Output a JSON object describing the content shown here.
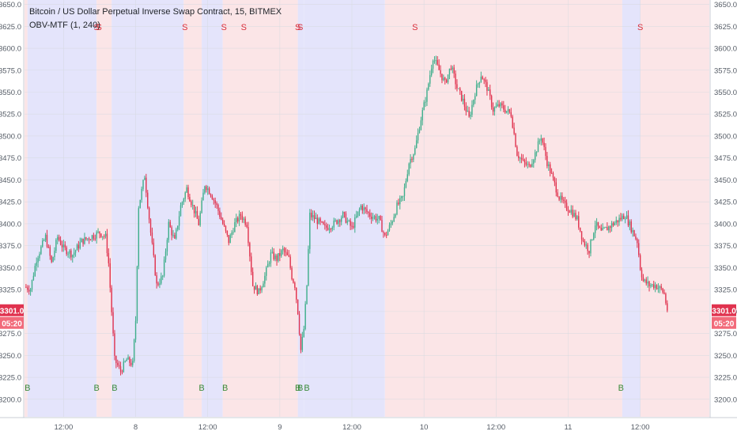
{
  "chart_data": {
    "type": "candlestick",
    "title": "Bitcoin / US Dollar Perpetual Inverse Swap Contract, 15, BITMEX",
    "indicator": "OBV-MTF (1, 240)",
    "y_range": [
      3180,
      3655
    ],
    "y_ticks": [
      3200,
      3225,
      3250,
      3275,
      3300,
      3325,
      3350,
      3375,
      3400,
      3425,
      3450,
      3475,
      3500,
      3525,
      3550,
      3575,
      3600,
      3625,
      3650
    ],
    "y_tick_labels": [
      "3200.0",
      "3225.0",
      "3250.0",
      "3275.0",
      "3300.0",
      "3325.0",
      "3350.0",
      "3375.0",
      "3400.0",
      "3425.0",
      "3450.0",
      "3475.0",
      "3500.0",
      "3525.0",
      "3550.0",
      "3575.0",
      "3600.0",
      "3625.0",
      "3650.0"
    ],
    "x_tick_labels": [
      "12:00",
      "8",
      "12:00",
      "9",
      "12:00",
      "10",
      "12:00",
      "11",
      "12:00"
    ],
    "x_tick_hours": [
      0,
      12,
      24,
      36,
      48,
      60,
      72,
      84,
      96
    ],
    "x_range_hours": [
      -6.5,
      107.5
    ],
    "last_price_label": "3301.0",
    "countdown_label": "05:20",
    "colors": {
      "up": "#3fae8c",
      "down": "#e0334f",
      "bull_zone": "#e4e4fb",
      "bear_zone": "#fbe5e7",
      "signal_buy": "#3a8a3a",
      "signal_sell": "#d9303c"
    },
    "zones": [
      {
        "start": -6.5,
        "end": -6.0,
        "state": "bear"
      },
      {
        "start": -6.0,
        "end": 5.5,
        "state": "bull"
      },
      {
        "start": 5.5,
        "end": 8.0,
        "state": "bear"
      },
      {
        "start": 8.0,
        "end": 20.0,
        "state": "bull"
      },
      {
        "start": 20.0,
        "end": 23.0,
        "state": "bear"
      },
      {
        "start": 23.0,
        "end": 26.5,
        "state": "bull"
      },
      {
        "start": 26.5,
        "end": 39.0,
        "state": "bear"
      },
      {
        "start": 39.0,
        "end": 40.0,
        "state": "bull"
      },
      {
        "start": 40.0,
        "end": 53.5,
        "state": "bull"
      },
      {
        "start": 53.5,
        "end": 93.0,
        "state": "bear"
      },
      {
        "start": 93.0,
        "end": 96.0,
        "state": "bull"
      },
      {
        "start": 96.0,
        "end": 107.5,
        "state": "bear"
      }
    ],
    "signals": [
      {
        "t": -6.0,
        "type": "buy",
        "text": "B"
      },
      {
        "t": 5.5,
        "type": "sell",
        "text": "S"
      },
      {
        "t": 5.9,
        "type": "sell",
        "text": "S"
      },
      {
        "t": 5.5,
        "type": "buy",
        "text": "B"
      },
      {
        "t": 8.5,
        "type": "buy",
        "text": "B"
      },
      {
        "t": 20.2,
        "type": "sell",
        "text": "S"
      },
      {
        "t": 23.0,
        "type": "buy",
        "text": "B"
      },
      {
        "t": 26.7,
        "type": "sell",
        "text": "S"
      },
      {
        "t": 26.9,
        "type": "buy",
        "text": "B"
      },
      {
        "t": 30.0,
        "type": "sell",
        "text": "S"
      },
      {
        "t": 39.0,
        "type": "sell",
        "text": "S"
      },
      {
        "t": 39.4,
        "type": "sell",
        "text": "S"
      },
      {
        "t": 39.0,
        "type": "buy",
        "text": "B"
      },
      {
        "t": 39.4,
        "type": "buy",
        "text": "B"
      },
      {
        "t": 40.5,
        "type": "buy",
        "text": "B"
      },
      {
        "t": 58.5,
        "type": "sell",
        "text": "S"
      },
      {
        "t": 92.8,
        "type": "buy",
        "text": "B"
      },
      {
        "t": 96.0,
        "type": "sell",
        "text": "S"
      }
    ],
    "close_path": [
      [
        -6.5,
        3328
      ],
      [
        -5.5,
        3326
      ],
      [
        -4.5,
        3360
      ],
      [
        -3.0,
        3385
      ],
      [
        -2.0,
        3355
      ],
      [
        -1.0,
        3385
      ],
      [
        0.0,
        3372
      ],
      [
        1.5,
        3365
      ],
      [
        3.0,
        3380
      ],
      [
        4.5,
        3385
      ],
      [
        6.0,
        3390
      ],
      [
        7.0,
        3385
      ],
      [
        7.5,
        3355
      ],
      [
        8.0,
        3300
      ],
      [
        8.5,
        3245
      ],
      [
        9.5,
        3232
      ],
      [
        10.5,
        3245
      ],
      [
        11.5,
        3240
      ],
      [
        12.0,
        3290
      ],
      [
        12.5,
        3420
      ],
      [
        13.5,
        3455
      ],
      [
        14.5,
        3390
      ],
      [
        15.5,
        3330
      ],
      [
        16.5,
        3340
      ],
      [
        17.5,
        3400
      ],
      [
        18.5,
        3380
      ],
      [
        19.5,
        3420
      ],
      [
        20.5,
        3440
      ],
      [
        21.5,
        3420
      ],
      [
        22.5,
        3400
      ],
      [
        23.5,
        3445
      ],
      [
        24.5,
        3435
      ],
      [
        25.5,
        3420
      ],
      [
        26.5,
        3400
      ],
      [
        27.5,
        3380
      ],
      [
        28.5,
        3400
      ],
      [
        29.5,
        3410
      ],
      [
        30.5,
        3400
      ],
      [
        31.5,
        3330
      ],
      [
        32.5,
        3322
      ],
      [
        33.5,
        3340
      ],
      [
        34.5,
        3365
      ],
      [
        35.5,
        3360
      ],
      [
        36.5,
        3370
      ],
      [
        37.5,
        3360
      ],
      [
        38.0,
        3340
      ],
      [
        38.5,
        3330
      ],
      [
        39.0,
        3300
      ],
      [
        39.5,
        3256
      ],
      [
        40.0,
        3280
      ],
      [
        40.5,
        3330
      ],
      [
        41.0,
        3410
      ],
      [
        42.0,
        3405
      ],
      [
        43.5,
        3395
      ],
      [
        45.0,
        3400
      ],
      [
        46.5,
        3410
      ],
      [
        48.0,
        3395
      ],
      [
        49.5,
        3420
      ],
      [
        51.0,
        3410
      ],
      [
        52.5,
        3405
      ],
      [
        53.5,
        3385
      ],
      [
        54.5,
        3400
      ],
      [
        55.5,
        3420
      ],
      [
        56.5,
        3430
      ],
      [
        57.5,
        3470
      ],
      [
        58.5,
        3485
      ],
      [
        59.5,
        3520
      ],
      [
        60.5,
        3550
      ],
      [
        61.5,
        3590
      ],
      [
        62.5,
        3575
      ],
      [
        63.5,
        3560
      ],
      [
        64.5,
        3580
      ],
      [
        65.5,
        3555
      ],
      [
        66.5,
        3540
      ],
      [
        67.5,
        3520
      ],
      [
        68.5,
        3550
      ],
      [
        69.5,
        3570
      ],
      [
        70.5,
        3555
      ],
      [
        71.5,
        3530
      ],
      [
        72.5,
        3535
      ],
      [
        73.5,
        3530
      ],
      [
        74.5,
        3525
      ],
      [
        75.5,
        3480
      ],
      [
        76.5,
        3470
      ],
      [
        77.5,
        3465
      ],
      [
        78.5,
        3480
      ],
      [
        79.5,
        3500
      ],
      [
        80.5,
        3470
      ],
      [
        81.5,
        3450
      ],
      [
        82.5,
        3430
      ],
      [
        83.5,
        3420
      ],
      [
        84.5,
        3415
      ],
      [
        85.5,
        3405
      ],
      [
        86.5,
        3380
      ],
      [
        87.5,
        3370
      ],
      [
        88.5,
        3400
      ],
      [
        89.5,
        3390
      ],
      [
        90.5,
        3395
      ],
      [
        91.5,
        3400
      ],
      [
        92.5,
        3405
      ],
      [
        93.5,
        3410
      ],
      [
        94.5,
        3395
      ],
      [
        95.5,
        3380
      ],
      [
        96.0,
        3350
      ],
      [
        96.5,
        3335
      ],
      [
        97.5,
        3330
      ],
      [
        98.5,
        3330
      ],
      [
        99.5,
        3325
      ],
      [
        100.0,
        3320
      ],
      [
        100.5,
        3301
      ]
    ]
  }
}
